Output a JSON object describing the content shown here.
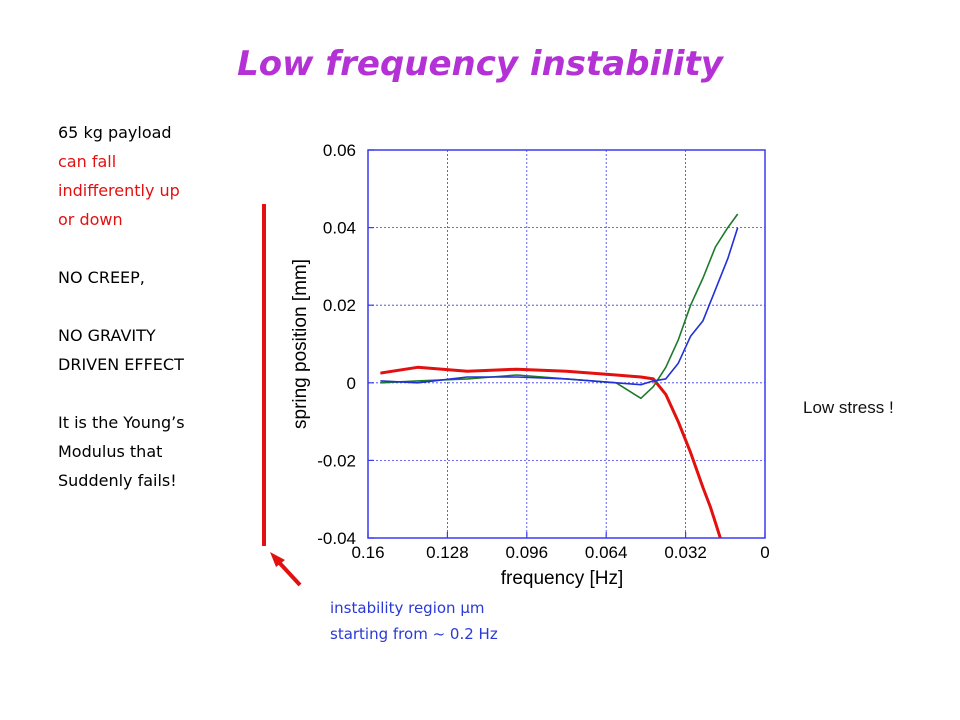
{
  "title": "Low frequency instability",
  "notes": {
    "line1": "65 kg payload",
    "line2_red": "can fall",
    "line3_red": "indifferently up",
    "line4_red": "or down",
    "line5": "NO CREEP,",
    "line6": "NO GRAVITY",
    "line7": "DRIVEN EFFECT",
    "line8": "It is the Young’s",
    "line9": "Modulus that",
    "line10": "Suddenly fails!"
  },
  "side_note": "Low stress !",
  "bottom_note": {
    "line1": "instability region μm",
    "line2": "starting from ~ 0.2 Hz"
  },
  "colors": {
    "accent_red": "#e31010",
    "note_blue": "#2a39d8",
    "grid": "#3a3af0"
  },
  "chart_data": {
    "type": "line",
    "title": "",
    "xlabel": "frequency [Hz]",
    "ylabel": "spring position [mm]",
    "xlim": [
      0.16,
      0
    ],
    "ylim": [
      -0.04,
      0.06
    ],
    "x_reversed": true,
    "grid": true,
    "x_ticks": [
      "0.16",
      "0.128",
      "0.096",
      "0.064",
      "0.032",
      "0"
    ],
    "y_ticks": [
      "0.06",
      "0.04",
      "0.02",
      "0",
      "-0.02",
      "-0.04"
    ],
    "series": [
      {
        "color": "#e31010",
        "x": [
          0.155,
          0.14,
          0.12,
          0.1,
          0.08,
          0.06,
          0.05,
          0.045,
          0.04,
          0.035,
          0.03,
          0.025,
          0.022,
          0.02,
          0.018
        ],
        "y": [
          0.0025,
          0.004,
          0.003,
          0.0035,
          0.003,
          0.002,
          0.0015,
          0.001,
          -0.003,
          -0.01,
          -0.018,
          -0.027,
          -0.032,
          -0.036,
          -0.04
        ]
      },
      {
        "color": "#1e7a2a",
        "x": [
          0.155,
          0.14,
          0.12,
          0.1,
          0.08,
          0.06,
          0.055,
          0.05,
          0.045,
          0.04,
          0.035,
          0.03,
          0.025,
          0.02,
          0.015,
          0.011
        ],
        "y": [
          0.0,
          0.0005,
          0.001,
          0.002,
          0.001,
          0.0,
          -0.002,
          -0.004,
          -0.001,
          0.004,
          0.011,
          0.02,
          0.027,
          0.035,
          0.04,
          0.0435
        ]
      },
      {
        "color": "#2230d8",
        "x": [
          0.155,
          0.14,
          0.12,
          0.1,
          0.08,
          0.06,
          0.05,
          0.045,
          0.04,
          0.035,
          0.03,
          0.025,
          0.02,
          0.015,
          0.011
        ],
        "y": [
          0.0005,
          0.0,
          0.0015,
          0.0015,
          0.001,
          0.0,
          -0.0005,
          0.0005,
          0.001,
          0.005,
          0.012,
          0.016,
          0.024,
          0.032,
          0.04
        ]
      }
    ]
  }
}
